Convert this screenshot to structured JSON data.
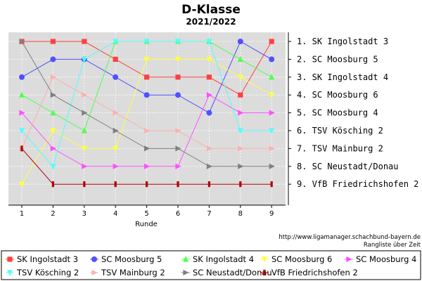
{
  "chart_data": {
    "type": "line",
    "title": "D-Klasse",
    "subtitle": "2021/2022",
    "xlabel": "Runde",
    "ylabel": "",
    "x": [
      1,
      2,
      3,
      4,
      5,
      6,
      7,
      8,
      9
    ],
    "ylim": [
      1,
      9
    ],
    "y_inverted": true,
    "grid": true,
    "legend_position": "bottom",
    "final_ranking": [
      "1. SK Ingolstadt 3",
      "2. SC Moosburg 5",
      "3. SK Ingolstadt 4",
      "4. SC Moosburg 6",
      "5. SC Moosburg 4",
      "6. TSV Kösching 2",
      "7. TSV Mainburg 2",
      "8. SC Neustadt/Donau",
      "9. VfB Friedrichshofen 2"
    ],
    "series": [
      {
        "name": "SK Ingolstadt 3",
        "color": "#ff4040",
        "marker": "square",
        "values": [
          1,
          1,
          1,
          2,
          3,
          3,
          3,
          4,
          1
        ]
      },
      {
        "name": "SC Moosburg 5",
        "color": "#5050ff",
        "marker": "circle",
        "values": [
          3,
          2,
          2,
          3,
          4,
          4,
          5,
          1,
          2
        ]
      },
      {
        "name": "SK Ingolstadt 4",
        "color": "#50ff50",
        "marker": "triangle-up",
        "values": [
          4,
          5,
          6,
          1,
          1,
          1,
          1,
          2,
          3
        ]
      },
      {
        "name": "SC Moosburg 6",
        "color": "#ffff40",
        "marker": "triangle-down",
        "values": [
          9,
          6,
          7,
          7,
          2,
          2,
          2,
          3,
          4
        ]
      },
      {
        "name": "SC Moosburg 4",
        "color": "#ff50ff",
        "marker": "triangle-right",
        "values": [
          5,
          7,
          8,
          8,
          8,
          8,
          4,
          5,
          5
        ]
      },
      {
        "name": "TSV Kösching 2",
        "color": "#50ffff",
        "marker": "triangle-down",
        "values": [
          6,
          8,
          2,
          1,
          1,
          1,
          1,
          6,
          6
        ]
      },
      {
        "name": "TSV Mainburg 2",
        "color": "#ffb0b0",
        "marker": "triangle-right",
        "values": [
          7,
          3,
          4,
          5,
          6,
          6,
          7,
          7,
          7
        ]
      },
      {
        "name": "SC Neustadt/Donau",
        "color": "#808080",
        "marker": "triangle-right",
        "values": [
          1,
          4,
          5,
          6,
          7,
          7,
          8,
          8,
          8
        ]
      },
      {
        "name": "VfB Friedrichshofen 2",
        "color": "#b00000",
        "marker": "bar",
        "values": [
          7,
          9,
          9,
          9,
          9,
          9,
          9,
          9,
          9
        ]
      }
    ]
  },
  "source_url": "http://www.ligamanager.schachbund-bayern.de",
  "source_caption": "Rangliste über Zeit"
}
